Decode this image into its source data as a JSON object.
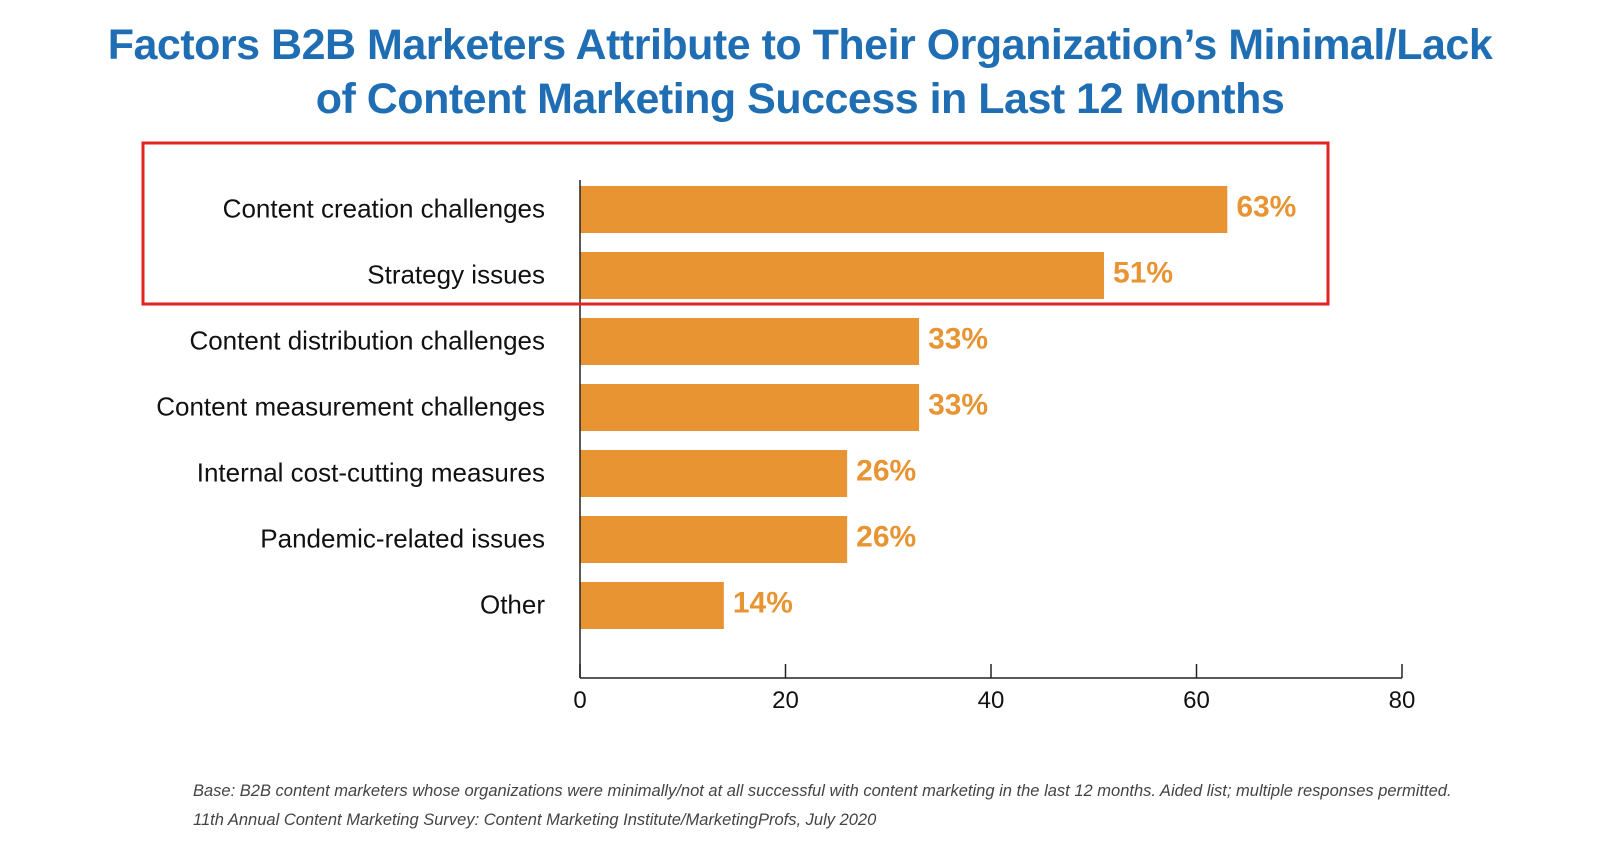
{
  "title": {
    "line1": "Factors B2B Marketers Attribute to Their Organization’s Minimal/Lack",
    "line2": "of Content Marketing Success in Last 12 Months"
  },
  "colors": {
    "title": "#1f6eb4",
    "bar": "#e89433",
    "value_label": "#e89433",
    "highlight": "#e02424",
    "axis": "#222222",
    "text": "#111111",
    "footnote": "#444444"
  },
  "chart_data": {
    "type": "bar",
    "orientation": "horizontal",
    "title": "Factors B2B Marketers Attribute to Their Organization’s Minimal/Lack of Content Marketing Success in Last 12 Months",
    "categories": [
      "Content creation challenges",
      "Strategy issues",
      "Content distribution challenges",
      "Content measurement challenges",
      "Internal cost-cutting measures",
      "Pandemic-related issues",
      "Other"
    ],
    "values": [
      63,
      51,
      33,
      33,
      26,
      26,
      14
    ],
    "value_labels": [
      "63%",
      "51%",
      "33%",
      "33%",
      "26%",
      "26%",
      "14%"
    ],
    "xlim": [
      0,
      80
    ],
    "xticks": [
      0,
      20,
      40,
      60,
      80
    ],
    "xlabel": "",
    "ylabel": "",
    "grid": false,
    "highlighted_categories": [
      "Content creation challenges",
      "Strategy issues"
    ]
  },
  "footnote": {
    "base": "Base: B2B content marketers whose organizations were minimally/not at all successful with content marketing in the last 12 months. Aided list; multiple responses permitted.",
    "source": "11th Annual Content Marketing Survey: Content Marketing Institute/MarketingProfs, July 2020"
  }
}
